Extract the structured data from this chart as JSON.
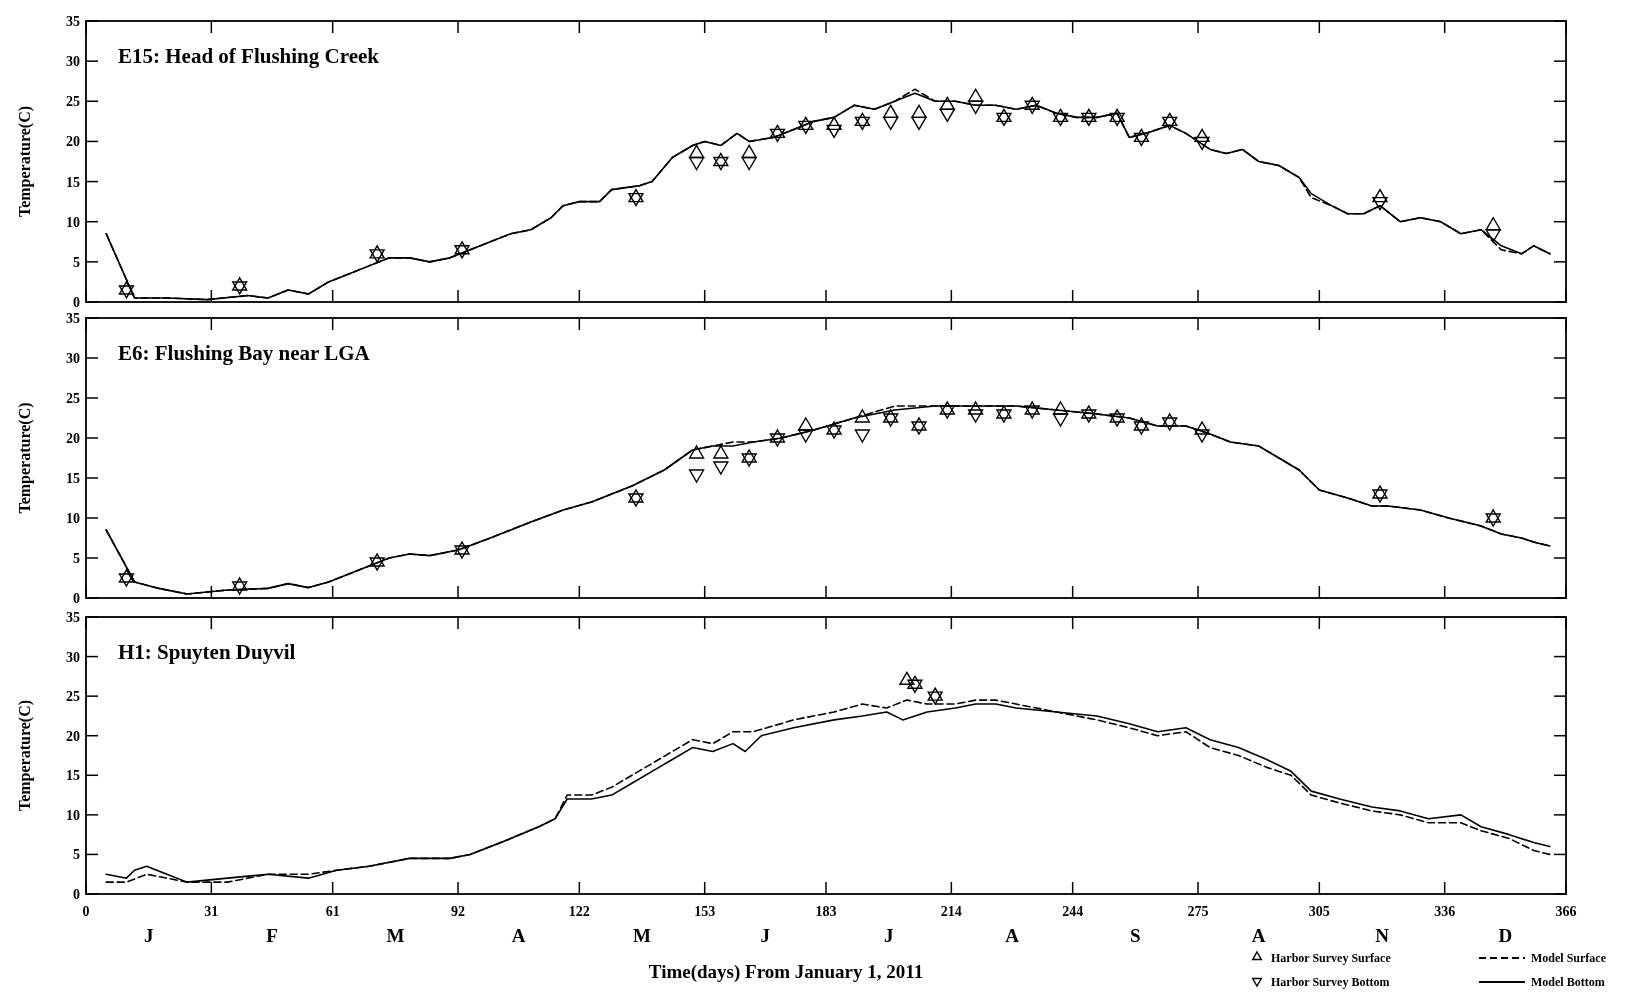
{
  "chart_data": [
    {
      "type": "line",
      "title": "E15: Head of Flushing Creek",
      "ylabel": "Temperature(C)",
      "xlim": [
        0,
        366
      ],
      "xticks": [
        0,
        31,
        61,
        92,
        122,
        153,
        183,
        214,
        244,
        275,
        305,
        336,
        366
      ],
      "ylim": [
        0,
        35
      ],
      "yticks": [
        0,
        5,
        10,
        15,
        20,
        25,
        30,
        35
      ],
      "tick_labels": "y",
      "series": [
        {
          "color": "#000000",
          "line_style": "dashed",
          "x": [
            5,
            12,
            20,
            30,
            40,
            45,
            50,
            55,
            60,
            65,
            70,
            75,
            80,
            85,
            90,
            95,
            100,
            105,
            110,
            115,
            118,
            122,
            127,
            130,
            137,
            140,
            145,
            150,
            153,
            157,
            161,
            164,
            170,
            175,
            180,
            185,
            190,
            195,
            200,
            205,
            210,
            215,
            220,
            225,
            230,
            235,
            240,
            245,
            250,
            255,
            258,
            262,
            268,
            272,
            278,
            282,
            286,
            290,
            295,
            300,
            303,
            308,
            312,
            316,
            320,
            325,
            330,
            335,
            340,
            345,
            350,
            355,
            358,
            362
          ],
          "values": [
            8.5,
            0.5,
            0.5,
            0.3,
            0.8,
            0.5,
            1.5,
            1,
            2.5,
            3.5,
            4.5,
            5.5,
            5.5,
            5,
            5.5,
            6.5,
            7.5,
            8.5,
            9,
            10.5,
            12,
            12.5,
            12.5,
            14,
            14.5,
            15,
            18,
            19.5,
            20,
            19.5,
            21,
            20,
            20.5,
            21.5,
            22.5,
            23,
            24.5,
            24,
            25,
            26.5,
            25,
            25,
            24.5,
            24.5,
            24,
            24.5,
            23.5,
            23,
            23,
            23.5,
            20.5,
            21,
            22,
            21,
            19,
            18.5,
            19,
            17.5,
            17,
            15.5,
            13,
            12,
            11,
            11,
            12,
            10,
            10.5,
            10,
            8.5,
            9,
            6.5,
            6,
            7,
            6
          ]
        },
        {
          "color": "#000000",
          "line_style": "solid",
          "x": [
            5,
            12,
            20,
            30,
            40,
            45,
            50,
            55,
            60,
            65,
            70,
            75,
            80,
            85,
            90,
            95,
            100,
            105,
            110,
            115,
            118,
            122,
            127,
            130,
            137,
            140,
            145,
            150,
            153,
            157,
            161,
            164,
            170,
            175,
            180,
            185,
            190,
            195,
            200,
            205,
            210,
            215,
            220,
            225,
            230,
            235,
            240,
            245,
            250,
            255,
            258,
            262,
            268,
            272,
            278,
            282,
            286,
            290,
            295,
            300,
            303,
            308,
            312,
            316,
            320,
            325,
            330,
            335,
            340,
            345,
            350,
            355,
            358,
            362
          ],
          "values": [
            8.5,
            0.5,
            0.5,
            0.3,
            0.8,
            0.5,
            1.5,
            1,
            2.5,
            3.5,
            4.5,
            5.5,
            5.5,
            5,
            5.5,
            6.5,
            7.5,
            8.5,
            9,
            10.5,
            12,
            12.5,
            12.5,
            14,
            14.5,
            15,
            18,
            19.5,
            20,
            19.5,
            21,
            20,
            20.5,
            21.5,
            22.5,
            23,
            24.5,
            24,
            25,
            26,
            25,
            25,
            24.5,
            24.5,
            24,
            24.5,
            23.5,
            23,
            23,
            23.5,
            20.5,
            21,
            22,
            21,
            19,
            18.5,
            19,
            17.5,
            17,
            15.5,
            13.5,
            12,
            11,
            11,
            12,
            10,
            10.5,
            10,
            8.5,
            9,
            7,
            6,
            7,
            6
          ]
        },
        {
          "type": "scatter",
          "marker": "triangle",
          "color": "#000000",
          "x": [
            10,
            38,
            72,
            93,
            136,
            151,
            157,
            164,
            171,
            178,
            185,
            192,
            199,
            206,
            213,
            220,
            227,
            234,
            241,
            248,
            255,
            261,
            268,
            276,
            320,
            348
          ],
          "values": [
            1.5,
            2,
            6,
            6.5,
            13,
            18.5,
            17.5,
            18.5,
            21,
            22,
            22,
            22.5,
            23.5,
            23.5,
            24.5,
            25.5,
            23,
            24.5,
            23,
            23,
            23,
            20.5,
            22.5,
            20.5,
            13,
            9.5
          ]
        },
        {
          "type": "scatter",
          "marker": "triangle-down",
          "color": "#000000",
          "x": [
            10,
            38,
            72,
            93,
            136,
            151,
            157,
            164,
            171,
            178,
            185,
            192,
            199,
            206,
            213,
            220,
            227,
            234,
            241,
            248,
            255,
            261,
            268,
            276,
            320,
            348
          ],
          "values": [
            1.5,
            2,
            6,
            6.5,
            13,
            17.5,
            17.5,
            17.5,
            21,
            22,
            21.5,
            22.5,
            22.5,
            22.5,
            23.5,
            24.5,
            23,
            24.5,
            23,
            23,
            23,
            20.5,
            22.5,
            20,
            12.5,
            8.5
          ]
        }
      ]
    },
    {
      "type": "line",
      "title": "E6: Flushing Bay near LGA",
      "ylabel": "Temperature(C)",
      "xlim": [
        0,
        366
      ],
      "xticks": [
        0,
        31,
        61,
        92,
        122,
        153,
        183,
        214,
        244,
        275,
        305,
        336,
        366
      ],
      "ylim": [
        0,
        35
      ],
      "yticks": [
        0,
        5,
        10,
        15,
        20,
        25,
        30,
        35
      ],
      "tick_labels": "y",
      "series": [
        {
          "color": "#000000",
          "line_style": "dashed",
          "x": [
            5,
            12,
            18,
            25,
            35,
            45,
            50,
            55,
            60,
            65,
            70,
            75,
            80,
            85,
            92,
            100,
            110,
            118,
            125,
            135,
            143,
            150,
            155,
            160,
            165,
            172,
            180,
            190,
            200,
            210,
            220,
            230,
            240,
            250,
            258,
            265,
            272,
            278,
            283,
            290,
            295,
            300,
            305,
            312,
            318,
            322,
            330,
            337,
            345,
            350,
            355,
            358,
            362
          ],
          "values": [
            8.5,
            2,
            1.2,
            0.5,
            1,
            1.2,
            1.8,
            1.3,
            2,
            3,
            4,
            5,
            5.5,
            5.3,
            6,
            7.5,
            9.5,
            11,
            12,
            14,
            16,
            18.5,
            19,
            19.5,
            19.5,
            20,
            21,
            22.5,
            24,
            24,
            24,
            24,
            23.5,
            23,
            22.5,
            21.5,
            21.5,
            20.5,
            19.5,
            19,
            17.5,
            16,
            13.5,
            12.5,
            11.5,
            11.5,
            11,
            10,
            9,
            8,
            7.5,
            7,
            6.5
          ]
        },
        {
          "color": "#000000",
          "line_style": "solid",
          "x": [
            5,
            12,
            18,
            25,
            35,
            45,
            50,
            55,
            60,
            65,
            70,
            75,
            80,
            85,
            92,
            100,
            110,
            118,
            125,
            135,
            143,
            150,
            155,
            160,
            165,
            172,
            180,
            190,
            200,
            210,
            220,
            230,
            240,
            250,
            258,
            265,
            272,
            278,
            283,
            290,
            295,
            300,
            305,
            312,
            318,
            322,
            330,
            337,
            345,
            350,
            355,
            358,
            362
          ],
          "values": [
            8.5,
            2,
            1.2,
            0.5,
            1,
            1.2,
            1.8,
            1.3,
            2,
            3,
            4,
            5,
            5.5,
            5.3,
            6,
            7.5,
            9.5,
            11,
            12,
            14,
            16,
            18.5,
            19,
            19,
            19.5,
            20,
            21,
            22.5,
            23.5,
            24,
            24,
            24,
            23.5,
            23,
            22.5,
            21.5,
            21.5,
            20.5,
            19.5,
            19,
            17.5,
            16,
            13.5,
            12.5,
            11.5,
            11.5,
            11,
            10,
            9,
            8,
            7.5,
            7,
            6.5
          ]
        },
        {
          "type": "scatter",
          "marker": "triangle",
          "color": "#000000",
          "x": [
            10,
            38,
            72,
            93,
            136,
            151,
            157,
            164,
            171,
            178,
            185,
            192,
            199,
            206,
            213,
            220,
            227,
            234,
            241,
            248,
            255,
            261,
            268,
            276,
            320,
            348
          ],
          "values": [
            2.5,
            1.5,
            4.5,
            6,
            12.5,
            18,
            18,
            17.5,
            20,
            21.5,
            21,
            22.5,
            22.5,
            21.5,
            23.5,
            23.5,
            23,
            23.5,
            23.5,
            23,
            22.5,
            21.5,
            22,
            21,
            13,
            10
          ]
        },
        {
          "type": "scatter",
          "marker": "triangle-down",
          "color": "#000000",
          "x": [
            10,
            38,
            72,
            93,
            136,
            151,
            157,
            164,
            171,
            178,
            185,
            192,
            199,
            206,
            213,
            220,
            227,
            234,
            241,
            248,
            255,
            261,
            268,
            276,
            320,
            348
          ],
          "values": [
            2.5,
            1.5,
            4.5,
            6,
            12.5,
            15.5,
            16.5,
            17.5,
            20,
            20.5,
            21,
            20.5,
            22.5,
            21.5,
            23.5,
            23,
            23,
            23.5,
            22.5,
            23,
            22.5,
            21.5,
            22,
            20.5,
            13,
            10
          ]
        }
      ]
    },
    {
      "type": "line",
      "title": "H1: Spuyten Duyvil",
      "ylabel": "Temperature(C)",
      "xlabel": "Time(days) From January 1, 2011",
      "xlim": [
        0,
        366
      ],
      "xticks": [
        0,
        31,
        61,
        92,
        122,
        153,
        183,
        214,
        244,
        275,
        305,
        336,
        366
      ],
      "ylim": [
        0,
        35
      ],
      "yticks": [
        0,
        5,
        10,
        15,
        20,
        25,
        30,
        35
      ],
      "legend": "bottom right",
      "annotations": [
        "J",
        "F",
        "M",
        "A",
        "M",
        "J",
        "J",
        "A",
        "S",
        "A",
        "N",
        "D"
      ],
      "series": [
        {
          "name": "Model Surface",
          "color": "#000000",
          "line_style": "dashed",
          "x": [
            5,
            10,
            15,
            20,
            25,
            35,
            45,
            55,
            62,
            70,
            80,
            90,
            95,
            105,
            112,
            116,
            119,
            125,
            130,
            135,
            140,
            145,
            150,
            155,
            160,
            165,
            175,
            185,
            192,
            198,
            203,
            208,
            215,
            220,
            225,
            230,
            240,
            250,
            258,
            265,
            272,
            278,
            285,
            292,
            298,
            303,
            310,
            318,
            325,
            332,
            340,
            345,
            352,
            358,
            362
          ],
          "values": [
            1.5,
            1.5,
            2.5,
            2,
            1.5,
            1.5,
            2.5,
            2.5,
            3,
            3.5,
            4.5,
            4.5,
            5,
            7,
            8.5,
            9.5,
            12.5,
            12.5,
            13.5,
            15,
            16.5,
            18,
            19.5,
            19,
            20.5,
            20.5,
            22,
            23,
            24,
            23.5,
            24.5,
            24,
            24,
            24.5,
            24.5,
            24,
            23,
            22,
            21,
            20,
            20.5,
            18.5,
            17.5,
            16,
            15,
            12.5,
            11.5,
            10.5,
            10,
            9,
            9,
            8,
            7,
            5.5,
            5
          ]
        },
        {
          "name": "Model Bottom",
          "color": "#000000",
          "line_style": "solid",
          "x": [
            5,
            10,
            12,
            15,
            20,
            25,
            35,
            45,
            55,
            62,
            70,
            80,
            90,
            95,
            105,
            112,
            116,
            119,
            125,
            130,
            135,
            140,
            145,
            150,
            155,
            160,
            163,
            167,
            175,
            185,
            192,
            198,
            202,
            208,
            215,
            220,
            225,
            230,
            240,
            250,
            258,
            265,
            272,
            278,
            285,
            292,
            298,
            303,
            310,
            318,
            325,
            332,
            340,
            345,
            352,
            358,
            362
          ],
          "values": [
            2.5,
            2,
            3,
            3.5,
            2.5,
            1.5,
            2,
            2.5,
            2,
            3,
            3.5,
            4.5,
            4.5,
            5,
            7,
            8.5,
            9.5,
            12,
            12,
            12.5,
            14,
            15.5,
            17,
            18.5,
            18,
            19,
            18,
            20,
            21,
            22,
            22.5,
            23,
            22,
            23,
            23.5,
            24,
            24,
            23.5,
            23,
            22.5,
            21.5,
            20.5,
            21,
            19.5,
            18.5,
            17,
            15.5,
            13,
            12,
            11,
            10.5,
            9.5,
            10,
            8.5,
            7.5,
            6.5,
            6
          ]
        },
        {
          "name": "Harbor Survey Surface",
          "type": "scatter",
          "marker": "triangle",
          "color": "#000000",
          "x": [
            203,
            205,
            210
          ],
          "values": [
            27,
            26.5,
            25
          ]
        },
        {
          "name": "Harbor Survey Bottom",
          "type": "scatter",
          "marker": "triangle-down",
          "color": "#000000",
          "x": [
            205,
            210
          ],
          "values": [
            26.5,
            25
          ]
        }
      ]
    }
  ]
}
